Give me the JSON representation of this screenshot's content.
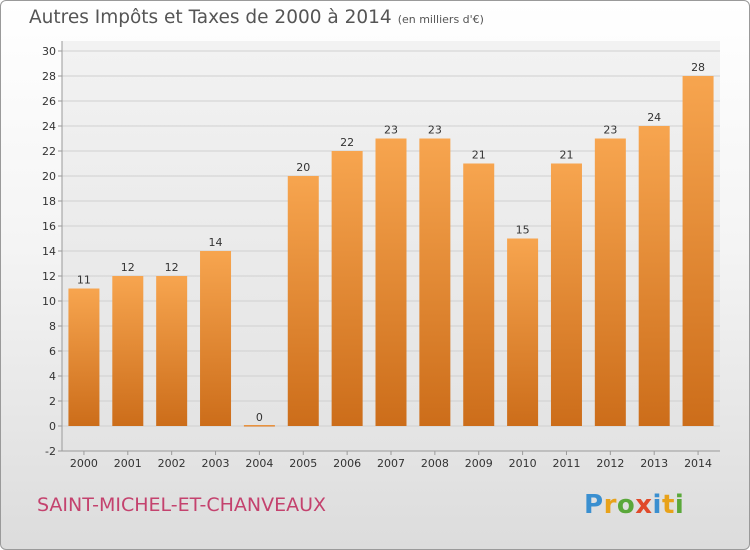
{
  "chart_data": {
    "type": "bar",
    "title": "Autres Impôts et Taxes de 2000 à 2014",
    "subtitle": "(en milliers d'€)",
    "categories": [
      "2000",
      "2001",
      "2002",
      "2003",
      "2004",
      "2005",
      "2006",
      "2007",
      "2008",
      "2009",
      "2010",
      "2011",
      "2012",
      "2013",
      "2014"
    ],
    "values": [
      11,
      12,
      12,
      14,
      0,
      20,
      22,
      23,
      23,
      21,
      15,
      21,
      23,
      24,
      28
    ],
    "data_labels": [
      "11",
      "12",
      "12",
      "14",
      "0",
      "20",
      "22",
      "23",
      "23",
      "21",
      "15",
      "21",
      "23",
      "24",
      "28"
    ],
    "ylim": [
      -2,
      30
    ],
    "yticks": [
      -2,
      0,
      2,
      4,
      6,
      8,
      10,
      12,
      14,
      16,
      18,
      20,
      22,
      24,
      26,
      28,
      30
    ],
    "grid": true,
    "bar_color_top": "#f7a54f",
    "bar_color_bottom": "#cc6d1a",
    "xlabel": "",
    "ylabel": ""
  },
  "footer": {
    "commune": "SAINT-MICHEL-ET-CHANVEAUX",
    "logo_text": "Proxiti",
    "logo_letters": [
      {
        "ch": "P",
        "color": "#3a8fd0"
      },
      {
        "ch": "r",
        "color": "#e8a21a"
      },
      {
        "ch": "o",
        "color": "#5aa83a"
      },
      {
        "ch": "x",
        "color": "#e04a2a"
      },
      {
        "ch": "i",
        "color": "#3a8fd0"
      },
      {
        "ch": "t",
        "color": "#e8a21a"
      },
      {
        "ch": "i",
        "color": "#5aa83a"
      }
    ]
  }
}
